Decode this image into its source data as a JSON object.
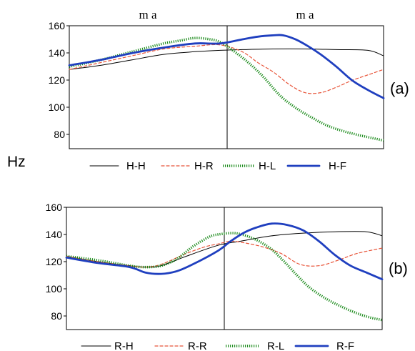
{
  "shared_ylabel": "Hz",
  "chart_data": [
    {
      "type": "line",
      "panel_label": "(a)",
      "top_labels": [
        "m a",
        "m a"
      ],
      "xlim": [
        0,
        100
      ],
      "ylim": [
        70,
        160
      ],
      "yticks": [
        80,
        100,
        120,
        140,
        160
      ],
      "divider_x": 48,
      "legend_position": "bottom",
      "series": [
        {
          "name": "H-H",
          "color": "#000000",
          "style": "solid-thin",
          "x": [
            0,
            10,
            20,
            30,
            40,
            48,
            55,
            65,
            75,
            85,
            95,
            100
          ],
          "y": [
            128,
            131,
            135,
            139,
            141,
            142,
            142.5,
            143,
            143,
            142.5,
            142,
            138
          ]
        },
        {
          "name": "H-R",
          "color": "#e8553a",
          "style": "dashed",
          "x": [
            0,
            10,
            20,
            30,
            40,
            48,
            55,
            60,
            65,
            70,
            75,
            80,
            85,
            90,
            95,
            100
          ],
          "y": [
            128,
            133,
            138,
            143,
            145,
            146,
            141,
            133,
            126,
            117,
            111,
            111,
            115,
            120,
            124,
            128
          ]
        },
        {
          "name": "H-L",
          "color": "#1a8a1a",
          "style": "dotted-thick",
          "x": [
            0,
            10,
            20,
            30,
            35,
            40,
            45,
            48,
            52,
            57,
            62,
            67,
            72,
            77,
            82,
            87,
            92,
            96,
            100
          ],
          "y": [
            130,
            135,
            141,
            147,
            149,
            151,
            150,
            148,
            142,
            133,
            122,
            109,
            100,
            93,
            87,
            83,
            80,
            78,
            76
          ]
        },
        {
          "name": "H-F",
          "color": "#1f3fbf",
          "style": "solid-thick",
          "x": [
            0,
            10,
            20,
            30,
            40,
            48,
            55,
            60,
            65,
            68,
            72,
            76,
            80,
            85,
            90,
            95,
            100
          ],
          "y": [
            131,
            135,
            140,
            144,
            147,
            147,
            150,
            152,
            153,
            153,
            150,
            145,
            139,
            130,
            120,
            113,
            107
          ]
        }
      ]
    },
    {
      "type": "line",
      "panel_label": "(b)",
      "top_labels": [],
      "xlim": [
        0,
        100
      ],
      "ylim": [
        70,
        160
      ],
      "yticks": [
        80,
        100,
        120,
        140,
        160
      ],
      "divider_x": 48,
      "legend_position": "bottom",
      "series": [
        {
          "name": "R-H",
          "color": "#000000",
          "style": "solid-thin",
          "x": [
            0,
            10,
            20,
            25,
            30,
            38,
            48,
            55,
            65,
            75,
            85,
            95,
            100
          ],
          "y": [
            124,
            120,
            117,
            116,
            117,
            124,
            132,
            135,
            139,
            141,
            142,
            142,
            139
          ]
        },
        {
          "name": "R-R",
          "color": "#e8553a",
          "style": "dashed",
          "x": [
            0,
            10,
            20,
            25,
            30,
            38,
            44,
            48,
            52,
            56,
            62,
            68,
            74,
            80,
            86,
            92,
            100
          ],
          "y": [
            124,
            120,
            117,
            116,
            118,
            126,
            131,
            133,
            135,
            134,
            131,
            126,
            118,
            117,
            121,
            126,
            130
          ]
        },
        {
          "name": "R-L",
          "color": "#1a8a1a",
          "style": "dotted-thick",
          "x": [
            0,
            10,
            20,
            25,
            30,
            35,
            40,
            45,
            48,
            53,
            57,
            61,
            65,
            69,
            73,
            77,
            82,
            87,
            92,
            96,
            100
          ],
          "y": [
            124,
            121,
            117,
            116,
            117,
            122,
            131,
            138,
            140,
            141,
            139,
            135,
            129,
            120,
            110,
            101,
            93,
            87,
            82,
            79,
            77
          ]
        },
        {
          "name": "R-F",
          "color": "#1f3fbf",
          "style": "solid-thick",
          "x": [
            0,
            10,
            20,
            25,
            30,
            35,
            40,
            48,
            52,
            56,
            60,
            65,
            70,
            75,
            80,
            85,
            90,
            95,
            100
          ],
          "y": [
            123,
            119,
            116,
            112,
            111,
            113,
            118,
            128,
            135,
            141,
            145,
            148,
            147,
            143,
            135,
            125,
            117,
            112,
            107
          ]
        }
      ]
    }
  ]
}
